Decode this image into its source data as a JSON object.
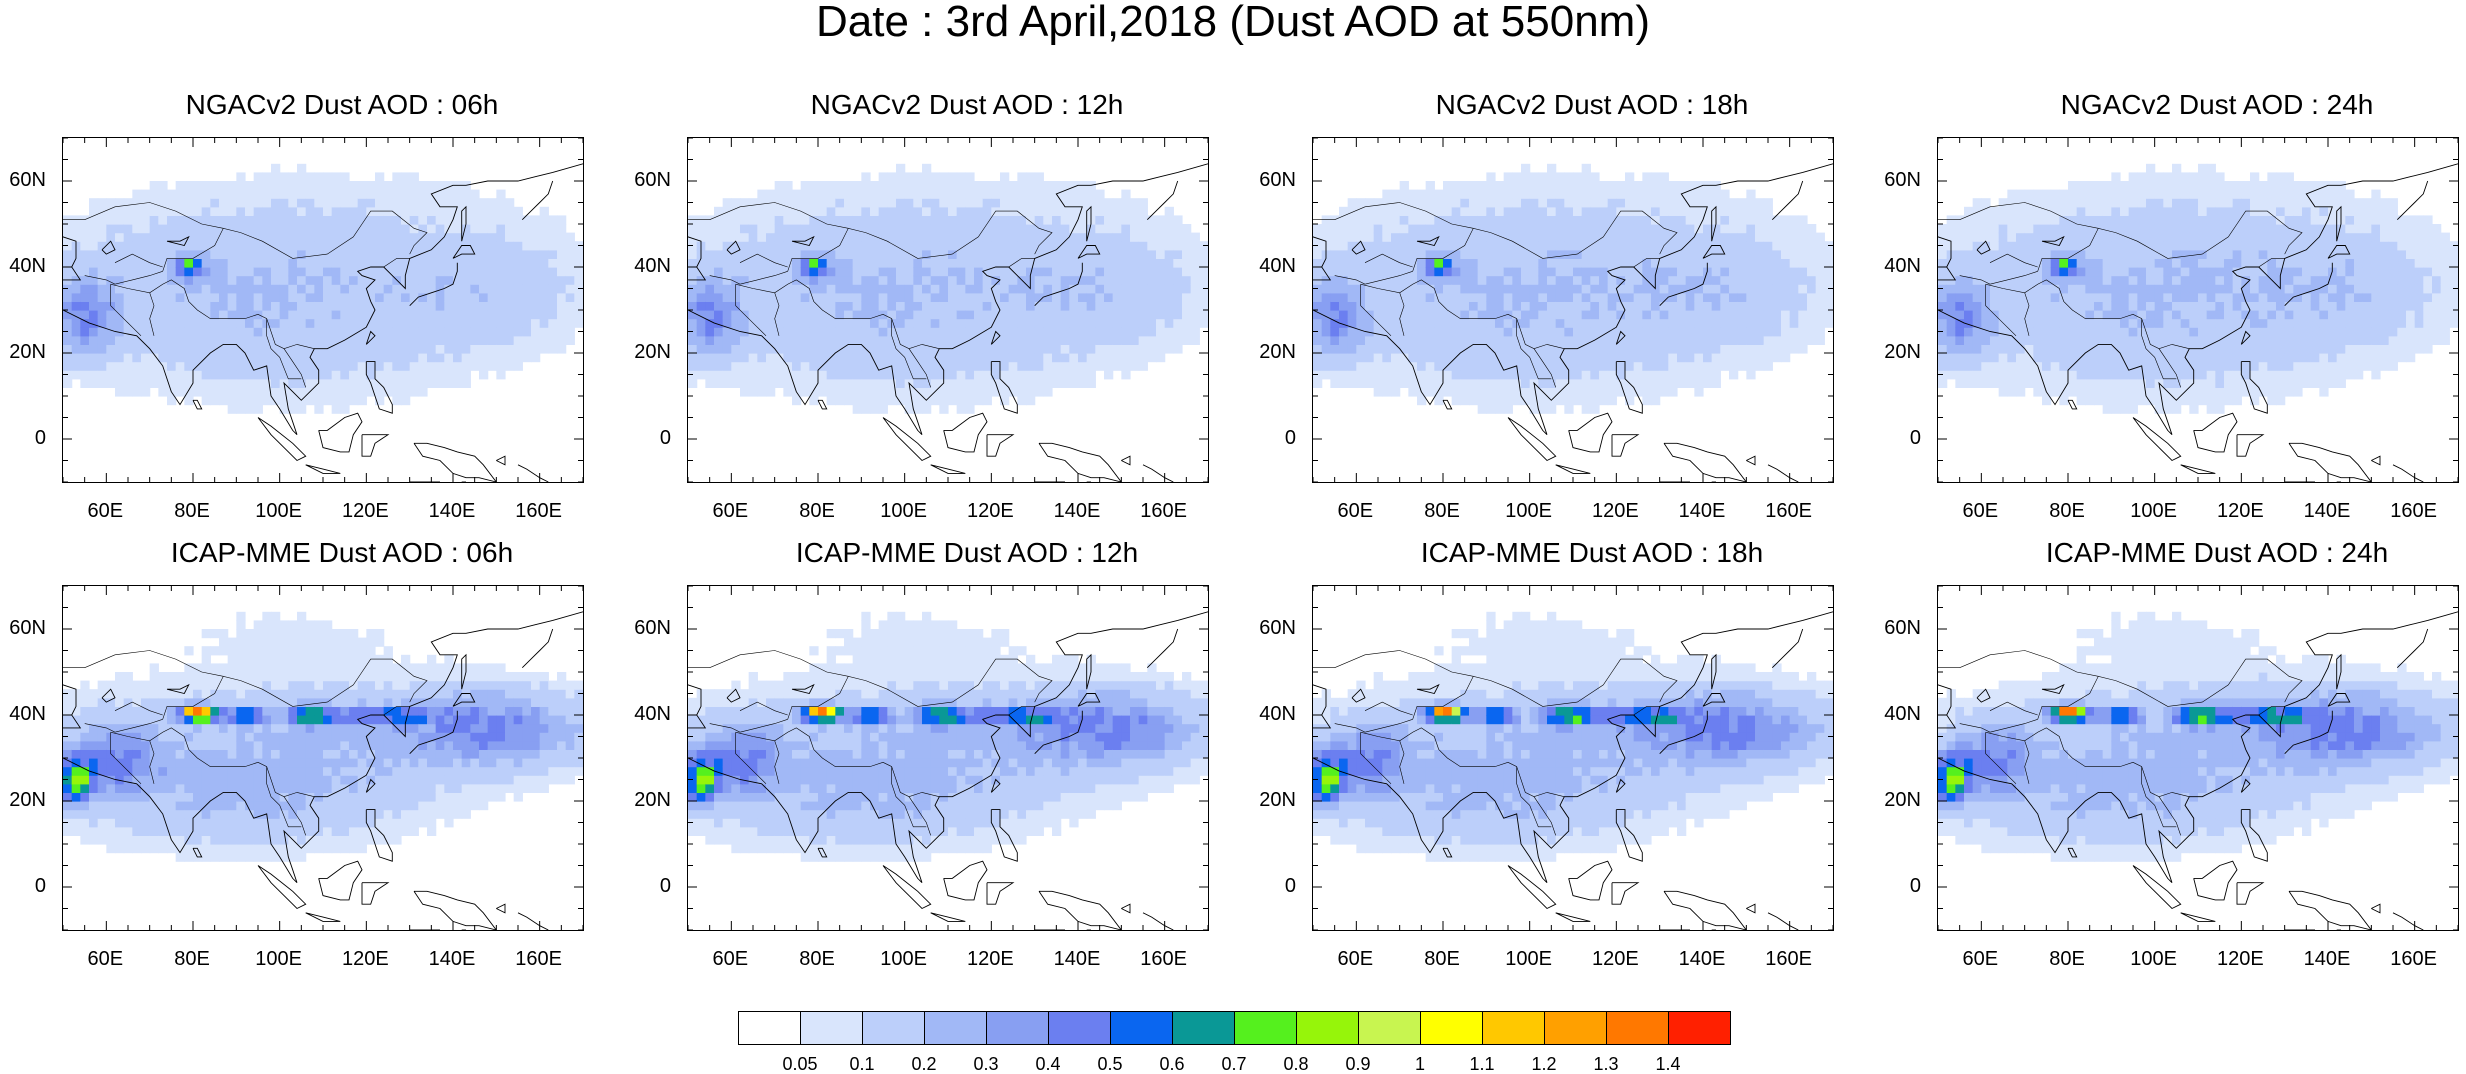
{
  "title": "Date : 3rd April,2018 (Dust AOD at 550nm)",
  "panels": [
    {
      "title": "NGACv2 Dust AOD : 06h",
      "model": "ngac",
      "hour": 6
    },
    {
      "title": "NGACv2 Dust AOD : 12h",
      "model": "ngac",
      "hour": 12
    },
    {
      "title": "NGACv2 Dust AOD : 18h",
      "model": "ngac",
      "hour": 18
    },
    {
      "title": "NGACv2 Dust AOD : 24h",
      "model": "ngac",
      "hour": 24
    },
    {
      "title": "ICAP-MME Dust AOD : 06h",
      "model": "icap",
      "hour": 6
    },
    {
      "title": "ICAP-MME Dust AOD : 12h",
      "model": "icap",
      "hour": 12
    },
    {
      "title": "ICAP-MME Dust AOD : 18h",
      "model": "icap",
      "hour": 18
    },
    {
      "title": "ICAP-MME Dust AOD : 24h",
      "model": "icap",
      "hour": 24
    }
  ],
  "map": {
    "lon_range": [
      50,
      170
    ],
    "lat_range": [
      -10,
      70
    ],
    "lon_ticks": [
      60,
      80,
      100,
      120,
      140,
      160
    ],
    "lon_tick_labels": [
      "60E",
      "80E",
      "100E",
      "120E",
      "140E",
      "160E"
    ],
    "lat_ticks": [
      0,
      20,
      40,
      60
    ],
    "lat_tick_labels": [
      "0",
      "20N",
      "40N",
      "60N"
    ]
  },
  "colorbar": {
    "labels": [
      "0.05",
      "0.1",
      "0.2",
      "0.3",
      "0.4",
      "0.5",
      "0.6",
      "0.7",
      "0.8",
      "0.9",
      "1",
      "1.1",
      "1.2",
      "1.3",
      "1.4"
    ],
    "colors": [
      "#ffffff",
      "#d9e5fc",
      "#bccffa",
      "#a1b8f6",
      "#889ff2",
      "#6b7ff0",
      "#0a66f0",
      "#0a9896",
      "#55f01e",
      "#96f50a",
      "#c8f550",
      "#ffff00",
      "#ffc800",
      "#ffa000",
      "#ff7800",
      "#ff2000"
    ]
  }
}
